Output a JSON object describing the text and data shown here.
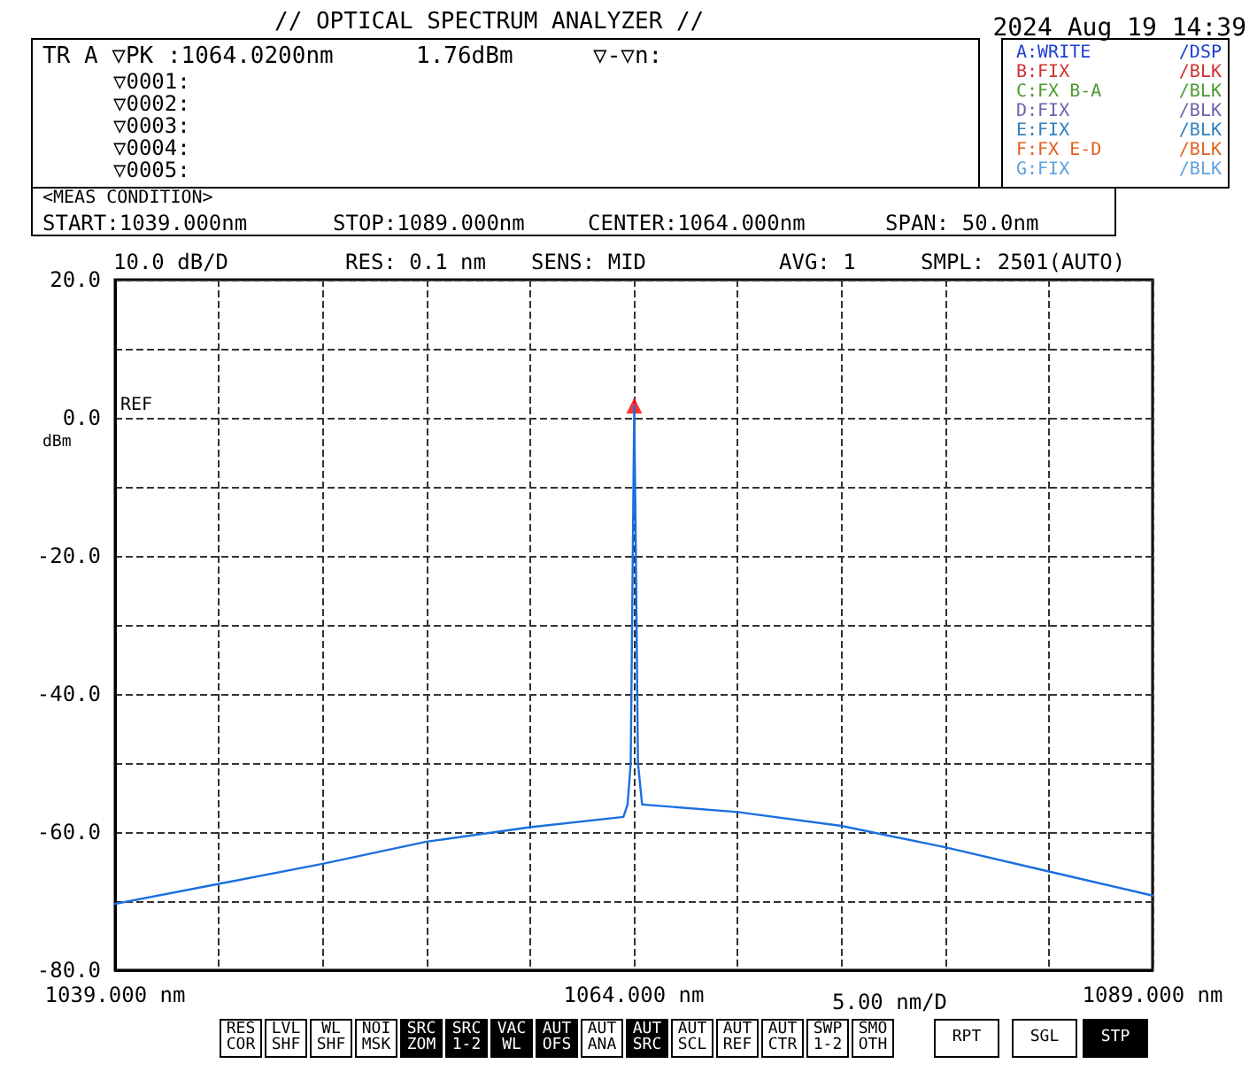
{
  "chart_data": {
    "type": "line",
    "title": "// OPTICAL SPECTRUM ANALYZER //",
    "x": [
      1039,
      1044,
      1049,
      1054,
      1059,
      1063.5,
      1063.7,
      1063.85,
      1063.95,
      1064.02,
      1064.1,
      1064.2,
      1064.4,
      1064.8,
      1069,
      1074,
      1079,
      1084,
      1089
    ],
    "series": [
      {
        "color": "#1a6fe0",
        "marker": "none",
        "line_style": "solid",
        "values": [
          -70.4,
          -67.5,
          -64.6,
          -61.4,
          -59.3,
          -57.8,
          -56,
          -50,
          -20,
          1.76,
          -20,
          -50,
          -56,
          -56.1,
          -57.1,
          -59.1,
          -62.2,
          -65.7,
          -69.2
        ]
      },
      {
        "type": "scatter",
        "color": "#ff0000",
        "marker": "triangle",
        "x": [
          1064.02
        ],
        "values": [
          1.76
        ]
      }
    ],
    "xlim": [
      1039,
      1089
    ],
    "xticks": [
      {
        "value": 1039,
        "label": "1039.000 nm"
      },
      {
        "value": 1044,
        "label": null
      },
      {
        "value": 1049,
        "label": null
      },
      {
        "value": 1054,
        "label": null
      },
      {
        "value": 1059,
        "label": null
      },
      {
        "value": 1064,
        "label": "1064.000 nm"
      },
      {
        "value": 1069,
        "label": null
      },
      {
        "value": 1074,
        "label": null
      },
      {
        "value": 1079,
        "label": null
      },
      {
        "value": 1084,
        "label": null
      },
      {
        "value": 1089,
        "label": "1089.000 nm"
      }
    ],
    "ylim": [
      -80,
      20
    ],
    "yticks": [
      {
        "value": -80,
        "label": "-80.0"
      },
      {
        "value": -70,
        "label": null
      },
      {
        "value": -60,
        "label": "-60.0"
      },
      {
        "value": -50,
        "label": null
      },
      {
        "value": -40,
        "label": "-40.0"
      },
      {
        "value": -30,
        "label": null
      },
      {
        "value": -20,
        "label": "-20.0"
      },
      {
        "value": -10,
        "label": null
      },
      {
        "value": 0,
        "label": "0.0"
      },
      {
        "value": 10,
        "label": null
      },
      {
        "value": 20,
        "label": "20.0"
      }
    ],
    "grid": true,
    "xlabel": "5.00 nm/D",
    "annotations": [
      "2024 Aug 19 14:39",
      "TR A ▽PK :1064.0200nm",
      "1.76dBm",
      "▽-▽n:",
      "▽0001:",
      "▽0002:",
      "▽0003:",
      "▽0004:",
      "▽0005:",
      "A:WRITE",
      "/DSP",
      "B:FIX",
      "/BLK",
      "C:FX B-A",
      "/BLK",
      "D:FIX",
      "/BLK",
      "E:FIX",
      "/BLK",
      "F:FX E-D",
      "/BLK",
      "G:FIX",
      "/BLK",
      "<MEAS CONDITION>",
      "START:1039.000nm",
      "STOP:1089.000nm",
      "CENTER:1064.000nm",
      "SPAN: 50.0nm",
      "10.0 dB/D",
      "RES: 0.1 nm",
      "SENS: MID",
      "AVG: 1",
      "SMPL: 2501(AUTO)",
      "REF",
      "dBm",
      "RES\nCOR",
      "LVL\nSHF",
      "WL\nSHF",
      "NOI\nMSK",
      "SRC\nZOM",
      "SRC\n1-2",
      "VAC\nWL",
      "AUT\nOFS",
      "AUT\nANA",
      "AUT\nSRC",
      "AUT\nSCL",
      "AUT\nREF",
      "AUT\nCTR",
      "SWP\n1-2",
      "SMO\nOTH",
      "RPT",
      "SGL",
      "STP"
    ]
  }
}
